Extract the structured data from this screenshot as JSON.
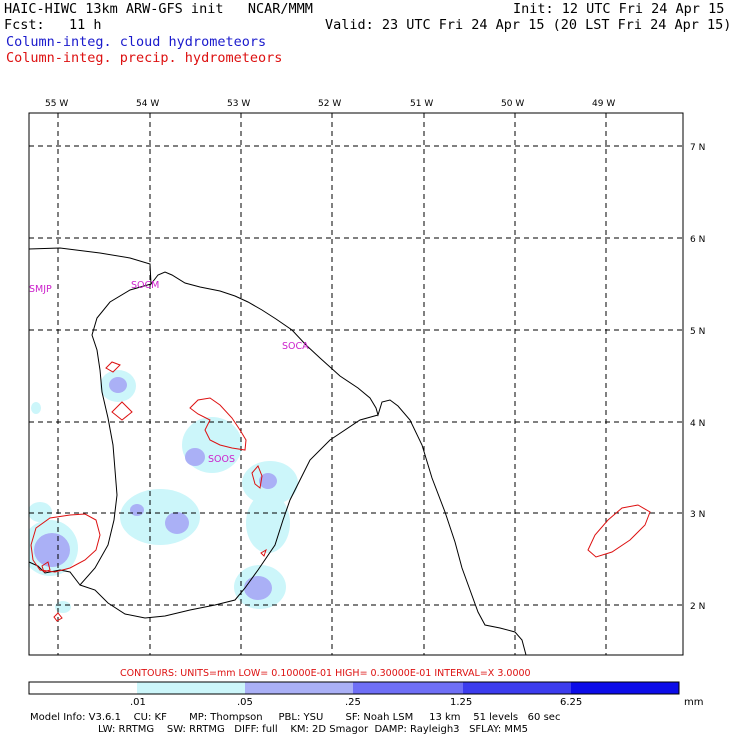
{
  "header": {
    "title_left": "HAIC-HIWC 13km ARW-GFS init   NCAR/MMM",
    "init": "Init: 12 UTC Fri 24 Apr 15",
    "fcst": "Fcst:   11 h",
    "valid": "Valid: 23 UTC Fri 24 Apr 15 (20 LST Fri 24 Apr 15)",
    "field_cloud": "Column-integ. cloud hydrometeors",
    "field_precip": "Column-integ. precip. hydrometeors"
  },
  "map": {
    "lon_labels": [
      "55 W",
      "54 W",
      "53 W",
      "52 W",
      "51 W",
      "50 W",
      "49 W"
    ],
    "lat_labels": [
      "7 N",
      "6 N",
      "5 N",
      "4 N",
      "3 N",
      "2 N"
    ],
    "stations": [
      "SMJP",
      "SOCM",
      "SOCA",
      "SOOS"
    ]
  },
  "contour_info": "CONTOURS:  UNITS=mm  LOW= 0.10000E-01  HIGH= 0.30000E-01  INTERVAL=X  3.0000",
  "colorbar": {
    "ticks": [
      ".01",
      ".05",
      ".25",
      "1.25",
      "6.25"
    ],
    "unit": "mm",
    "colors": [
      "#ffffff",
      "#ccf6fa",
      "#aab0f6",
      "#6f6ff6",
      "#3c3cee",
      "#0c0ce8"
    ]
  },
  "model_info": {
    "line1": "Model Info: V3.6.1    CU: KF       MP: Thompson     PBL: YSU       SF: Noah LSM     13 km    51 levels   60 sec",
    "line2": "LW: RRTMG    SW: RRTMG   DIFF: full    KM: 2D Smagor  DAMP: Rayleigh3   SFLAY: MM5"
  }
}
